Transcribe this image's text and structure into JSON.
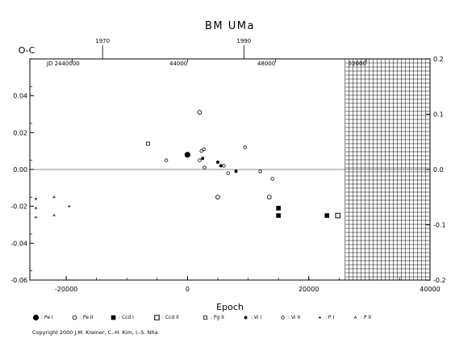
{
  "chart_data": {
    "type": "scatter",
    "title": "BM UMa",
    "xlabel": "Epoch",
    "ylabel": "O-C",
    "xlim": [
      -26000,
      40000
    ],
    "ylim": [
      -0.06,
      0.06
    ],
    "x_ticks": [
      -20000,
      0,
      20000,
      40000
    ],
    "x_tick_labels": [
      "-20000",
      "0",
      "20000",
      "40000"
    ],
    "y_ticks": [
      -0.06,
      -0.04,
      -0.02,
      0.0,
      0.02,
      0.04
    ],
    "y_tick_labels": [
      "-0.06",
      "-0.04",
      "-0.02",
      "0.00",
      "0.02",
      "0.04"
    ],
    "right_axis": {
      "ticks": [
        -0.2,
        -0.1,
        0.0,
        0.1,
        0.2
      ],
      "tick_labels": [
        "-0.2",
        "-0.1",
        "0.0",
        "0.1",
        "0.2"
      ],
      "scale_factor": 3.33
    },
    "top_axis_years": [
      {
        "label": "1970",
        "epoch": -14000
      },
      {
        "label": "1990",
        "epoch": 9300
      }
    ],
    "top_axis_jd": [
      {
        "label": "JD 2440000",
        "epoch": -20500
      },
      {
        "label": "44000",
        "epoch": -1500
      },
      {
        "label": "48000",
        "epoch": 13000
      },
      {
        "label": "52000",
        "epoch": 28000
      }
    ],
    "future_region_start": 26000,
    "zero_line": true,
    "series": [
      {
        "name": "Pe I",
        "marker": "filled-circle-large",
        "points": [
          [
            0,
            0.008
          ]
        ]
      },
      {
        "name": "Pe II",
        "marker": "open-circle",
        "points": [
          [
            2000,
            0.031
          ],
          [
            5000,
            -0.015
          ],
          [
            13500,
            -0.015
          ]
        ]
      },
      {
        "name": "Ccd I",
        "marker": "filled-square",
        "points": [
          [
            15000,
            -0.021
          ],
          [
            15000,
            -0.025
          ],
          [
            23000,
            -0.025
          ]
        ]
      },
      {
        "name": "Ccd II",
        "marker": "open-square",
        "points": [
          [
            24800,
            -0.025
          ]
        ]
      },
      {
        "name": "Pg II",
        "marker": "open-square-small",
        "points": [
          [
            -6500,
            0.014
          ]
        ]
      },
      {
        "name": "Vi I",
        "marker": "filled-circle-small",
        "points": [
          [
            2500,
            0.006
          ],
          [
            5000,
            0.004
          ],
          [
            5500,
            0.002
          ],
          [
            8000,
            -0.001
          ]
        ]
      },
      {
        "name": "Vi II",
        "marker": "open-circle-small",
        "points": [
          [
            -3500,
            0.005
          ],
          [
            2000,
            0.005
          ],
          [
            2300,
            0.01
          ],
          [
            2700,
            0.011
          ],
          [
            2800,
            0.001
          ],
          [
            6000,
            0.002
          ],
          [
            6700,
            -0.002
          ],
          [
            9500,
            0.012
          ],
          [
            12000,
            -0.001
          ],
          [
            14000,
            -0.005
          ]
        ]
      },
      {
        "name": "P I",
        "marker": "plus-small",
        "points": [
          [
            -25000,
            -0.016
          ],
          [
            -25000,
            -0.021
          ],
          [
            -22000,
            -0.015
          ],
          [
            -19500,
            -0.02
          ]
        ]
      },
      {
        "name": "P II",
        "marker": "caret-small",
        "points": [
          [
            -25000,
            -0.026
          ],
          [
            -22000,
            -0.025
          ]
        ]
      }
    ]
  },
  "legend": [
    {
      "symbol": "filled-circle-large",
      "label": ": Pe I"
    },
    {
      "symbol": "open-circle",
      "label": ": Pe II"
    },
    {
      "symbol": "filled-square",
      "label": ": Ccd I"
    },
    {
      "symbol": "open-square",
      "label": ": Ccd II"
    },
    {
      "symbol": "open-square-small",
      "label": ": Pg II"
    },
    {
      "symbol": "filled-circle-small",
      "label": ": Vi I"
    },
    {
      "symbol": "open-circle-small",
      "label": ": Vi II"
    },
    {
      "symbol": "plus-small",
      "label": ": P I"
    },
    {
      "symbol": "caret-small",
      "label": ": P II"
    }
  ],
  "copyright": "Copyright 2000 J.M. Kreiner, C.-H. Kim, I.-S. Nha"
}
